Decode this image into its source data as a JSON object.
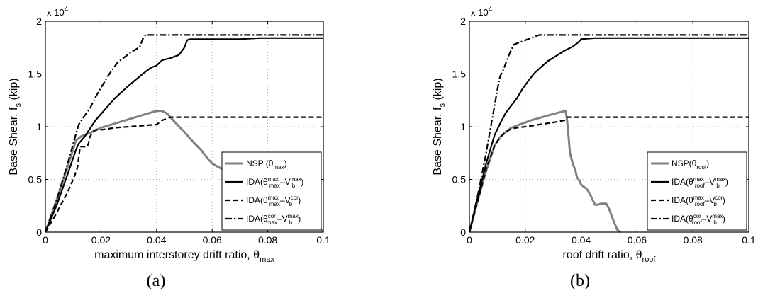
{
  "chart_data": [
    {
      "type": "line",
      "caption": "(a)",
      "exponent_label": "x 10",
      "exponent_power": "4",
      "ylabel_main": "Base Shear, f",
      "ylabel_sub": "s",
      "ylabel_unit": " (kip)",
      "xlabel_main": "maximum interstorey drift ratio, θ",
      "xlabel_sub": "max",
      "xlim": [
        0,
        0.1
      ],
      "ylim": [
        0,
        20000
      ],
      "grid": true,
      "legend_position": "bottom-right",
      "xticks": [
        "0",
        "0.02",
        "0.04",
        "0.06",
        "0.08",
        "0.1"
      ],
      "yticks": [
        "0",
        "0.5",
        "1",
        "1.5",
        "2"
      ],
      "series": [
        {
          "legend": {
            "pre": "NSP (θ",
            "sub": "max",
            "post": ")"
          },
          "color": "#808080",
          "style": "solid",
          "x": [
            0,
            0.004,
            0.008,
            0.011,
            0.013,
            0.016,
            0.02,
            0.025,
            0.03,
            0.035,
            0.04,
            0.042,
            0.044,
            0.046,
            0.05,
            0.053,
            0.056,
            0.058,
            0.06,
            0.062,
            0.065,
            0.068,
            0.072,
            0.076,
            0.08,
            0.086,
            0.09,
            0.094,
            0.096,
            0.098,
            0.1
          ],
          "y": [
            0,
            3000,
            6200,
            8700,
            9100,
            9400,
            9900,
            10300,
            10700,
            11100,
            11500,
            11500,
            11200,
            10600,
            9500,
            8600,
            7800,
            7100,
            6500,
            6200,
            5800,
            5500,
            5200,
            4900,
            4500,
            3700,
            3100,
            2300,
            1500,
            700,
            0
          ]
        },
        {
          "legend": {
            "pre": "IDA(θ",
            "sub": "max",
            "sup": "max",
            "mid": "–V",
            "sub2": "b",
            "sup2": "max",
            "post": ")"
          },
          "color": "#000000",
          "style": "solid",
          "x": [
            0,
            0.004,
            0.008,
            0.011,
            0.012,
            0.014,
            0.016,
            0.018,
            0.02,
            0.022,
            0.025,
            0.03,
            0.035,
            0.038,
            0.04,
            0.042,
            0.045,
            0.048,
            0.05,
            0.051,
            0.052,
            0.06,
            0.07,
            0.077,
            0.08,
            0.09,
            0.1
          ],
          "y": [
            0,
            2500,
            5500,
            7800,
            8400,
            9000,
            9800,
            10600,
            11200,
            11800,
            12700,
            13900,
            15000,
            15600,
            15800,
            16300,
            16500,
            16800,
            17500,
            18200,
            18300,
            18300,
            18300,
            18400,
            18400,
            18400,
            18400
          ]
        },
        {
          "legend": {
            "pre": "IDA(θ",
            "sub": "max",
            "sup": "max",
            "mid": "–V",
            "sub2": "b",
            "sup2": "cor",
            "post": ")"
          },
          "color": "#000000",
          "style": "dashed",
          "x": [
            0,
            0.004,
            0.008,
            0.01,
            0.011,
            0.0115,
            0.0125,
            0.015,
            0.0155,
            0.016,
            0.017,
            0.018,
            0.019,
            0.02,
            0.025,
            0.03,
            0.035,
            0.04,
            0.042,
            0.045,
            0.06,
            0.08,
            0.1
          ],
          "y": [
            0,
            1800,
            3800,
            5000,
            5700,
            6100,
            8100,
            8100,
            8400,
            9000,
            9500,
            9700,
            9700,
            9700,
            9900,
            10000,
            10100,
            10200,
            10600,
            10900,
            10900,
            10900,
            10900
          ]
        },
        {
          "legend": {
            "pre": "IDA(θ",
            "sub": "max",
            "sup": "cor",
            "mid": "–V",
            "sub2": "b",
            "sup2": "max",
            "post": ")"
          },
          "color": "#000000",
          "style": "dashdot",
          "x": [
            0,
            0.004,
            0.008,
            0.011,
            0.012,
            0.014,
            0.016,
            0.018,
            0.02,
            0.023,
            0.026,
            0.029,
            0.031,
            0.033,
            0.034,
            0.035,
            0.036,
            0.05,
            0.06,
            0.08,
            0.1
          ],
          "y": [
            0,
            3000,
            6500,
            9300,
            10200,
            11000,
            11700,
            12800,
            13700,
            15000,
            16100,
            16700,
            17100,
            17400,
            17600,
            18300,
            18700,
            18700,
            18700,
            18700,
            18700
          ]
        }
      ]
    },
    {
      "type": "line",
      "caption": "(b)",
      "exponent_label": "x 10",
      "exponent_power": "4",
      "ylabel_main": "Base Shear, f",
      "ylabel_sub": "s",
      "ylabel_unit": " (kip)",
      "xlabel_main": "roof drift ratio, θ",
      "xlabel_sub": "roof",
      "xlim": [
        0,
        0.1
      ],
      "ylim": [
        0,
        20000
      ],
      "grid": true,
      "legend_position": "bottom-right",
      "xticks": [
        "0",
        "0.02",
        "0.04",
        "0.06",
        "0.08",
        "0.1"
      ],
      "yticks": [
        "0",
        "0.5",
        "1",
        "1.5",
        "2"
      ],
      "series": [
        {
          "legend": {
            "pre": "NSP(θ",
            "sub": "roof",
            "post": ")"
          },
          "color": "#808080",
          "style": "solid",
          "x": [
            0,
            0.003,
            0.006,
            0.009,
            0.011,
            0.013,
            0.015,
            0.018,
            0.022,
            0.026,
            0.03,
            0.033,
            0.0345,
            0.035,
            0.0355,
            0.036,
            0.037,
            0.038,
            0.0385,
            0.039,
            0.0395,
            0.04,
            0.041,
            0.042,
            0.043,
            0.044,
            0.045,
            0.046,
            0.047,
            0.049,
            0.05,
            0.051,
            0.052,
            0.053,
            0.054
          ],
          "y": [
            0,
            3000,
            5800,
            8200,
            9000,
            9500,
            9900,
            10200,
            10600,
            10900,
            11200,
            11400,
            11500,
            10500,
            9000,
            7500,
            6500,
            5800,
            5200,
            5000,
            4800,
            4500,
            4300,
            4100,
            3700,
            3100,
            2600,
            2600,
            2700,
            2700,
            2200,
            1500,
            800,
            200,
            0
          ]
        },
        {
          "legend": {
            "pre": "IDA(θ",
            "sub": "roof",
            "sup": "max",
            "mid": "–V",
            "sub2": "b",
            "sup2": "max",
            "post": ")"
          },
          "color": "#000000",
          "style": "solid",
          "x": [
            0,
            0.003,
            0.006,
            0.009,
            0.011,
            0.013,
            0.015,
            0.017,
            0.019,
            0.021,
            0.023,
            0.025,
            0.028,
            0.031,
            0.034,
            0.037,
            0.039,
            0.04,
            0.045,
            0.05,
            0.06,
            0.08,
            0.1
          ],
          "y": [
            0,
            3300,
            6500,
            9200,
            10300,
            11300,
            12000,
            12700,
            13600,
            14300,
            15000,
            15500,
            16200,
            16700,
            17200,
            17600,
            18000,
            18300,
            18400,
            18400,
            18400,
            18400,
            18400
          ]
        },
        {
          "legend": {
            "pre": "IDA(θ",
            "sub": "roof",
            "sup": "max",
            "mid": "–V",
            "sub2": "b",
            "sup2": "cor",
            "post": ")"
          },
          "color": "#000000",
          "style": "dashed",
          "x": [
            0,
            0.003,
            0.006,
            0.009,
            0.011,
            0.013,
            0.015,
            0.017,
            0.02,
            0.025,
            0.03,
            0.034,
            0.035,
            0.04,
            0.06,
            0.08,
            0.1
          ],
          "y": [
            0,
            3000,
            6000,
            8200,
            9000,
            9500,
            9800,
            9900,
            10000,
            10200,
            10400,
            10600,
            10900,
            10900,
            10900,
            10900,
            10900
          ]
        },
        {
          "legend": {
            "pre": "IDA(θ",
            "sub": "roof",
            "sup": "cor",
            "mid": "–V",
            "sub2": "b",
            "sup2": "max",
            "post": ")"
          },
          "color": "#000000",
          "style": "dashdot",
          "x": [
            0,
            0.003,
            0.006,
            0.008,
            0.009,
            0.01,
            0.011,
            0.012,
            0.013,
            0.014,
            0.015,
            0.016,
            0.018,
            0.02,
            0.022,
            0.024,
            0.025,
            0.03,
            0.04,
            0.06,
            0.08,
            0.1
          ],
          "y": [
            0,
            3500,
            7500,
            10500,
            12000,
            13500,
            14800,
            15300,
            16000,
            16700,
            17300,
            17800,
            18000,
            18200,
            18400,
            18600,
            18700,
            18700,
            18700,
            18700,
            18700,
            18700
          ]
        }
      ]
    }
  ]
}
